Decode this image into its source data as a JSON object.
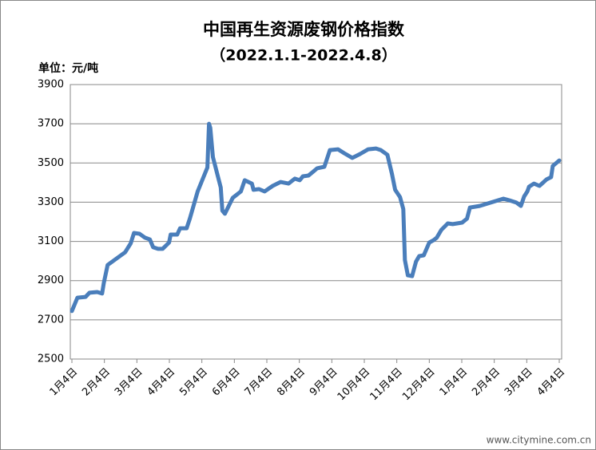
{
  "chart_data": {
    "type": "line",
    "title": "中国再生资源废钢价格指数",
    "subtitle": "（2022.1.1-2022.4.8）",
    "y_axis_label": "单位：元/吨",
    "watermark": "www.citymine.com.cn",
    "xlim": [
      0,
      15
    ],
    "xticks": [
      {
        "value": 0,
        "label": "1月4日"
      },
      {
        "value": 1,
        "label": "2月4日"
      },
      {
        "value": 2,
        "label": "3月4日"
      },
      {
        "value": 3,
        "label": "4月4日"
      },
      {
        "value": 4,
        "label": "5月4日"
      },
      {
        "value": 5,
        "label": "6月4日"
      },
      {
        "value": 6,
        "label": "7月4日"
      },
      {
        "value": 7,
        "label": "8月4日"
      },
      {
        "value": 8,
        "label": "9月4日"
      },
      {
        "value": 9,
        "label": "10月4日"
      },
      {
        "value": 10,
        "label": "11月4日"
      },
      {
        "value": 11,
        "label": "12月4日"
      },
      {
        "value": 12,
        "label": "1月4日"
      },
      {
        "value": 13,
        "label": "2月4日"
      },
      {
        "value": 14,
        "label": "3月4日"
      },
      {
        "value": 15,
        "label": "4月4日"
      }
    ],
    "ylim": [
      2500,
      3900
    ],
    "yticks": [
      2500,
      2700,
      2900,
      3100,
      3300,
      3500,
      3700,
      3900
    ],
    "grid": true,
    "series": [
      {
        "name": "废钢价格指数",
        "color": "#4a7ebb",
        "x": [
          0,
          0.17,
          0.42,
          0.54,
          0.78,
          0.93,
          0.98,
          1.1,
          1.64,
          1.81,
          1.91,
          2.08,
          2.25,
          2.4,
          2.5,
          2.65,
          2.79,
          2.99,
          3.04,
          3.24,
          3.33,
          3.53,
          3.63,
          3.87,
          4.17,
          4.22,
          4.26,
          4.34,
          4.58,
          4.63,
          4.71,
          4.95,
          5.2,
          5.32,
          5.54,
          5.59,
          5.76,
          5.93,
          6.18,
          6.42,
          6.67,
          6.86,
          7.01,
          7.11,
          7.28,
          7.4,
          7.55,
          7.77,
          7.94,
          8.19,
          8.38,
          8.63,
          8.87,
          9.12,
          9.36,
          9.51,
          9.71,
          9.85,
          9.95,
          10.1,
          10.2,
          10.25,
          10.34,
          10.47,
          10.59,
          10.69,
          10.83,
          11.0,
          11.13,
          11.23,
          11.37,
          11.47,
          11.57,
          11.72,
          12.01,
          12.16,
          12.25,
          12.55,
          13.28,
          13.46,
          13.68,
          13.82,
          13.92,
          14.02,
          14.07,
          14.22,
          14.39,
          14.61,
          14.75,
          14.8,
          15.0
        ],
        "values": [
          2745,
          2813,
          2817,
          2838,
          2842,
          2834,
          2887,
          2980,
          3045,
          3090,
          3143,
          3139,
          3119,
          3110,
          3070,
          3062,
          3062,
          3094,
          3135,
          3135,
          3167,
          3167,
          3216,
          3355,
          3477,
          3700,
          3680,
          3530,
          3375,
          3257,
          3241,
          3322,
          3355,
          3412,
          3395,
          3363,
          3367,
          3355,
          3383,
          3403,
          3395,
          3420,
          3412,
          3432,
          3436,
          3452,
          3473,
          3481,
          3566,
          3570,
          3550,
          3526,
          3546,
          3570,
          3574,
          3566,
          3542,
          3444,
          3363,
          3326,
          3265,
          3005,
          2927,
          2923,
          2997,
          3025,
          3029,
          3094,
          3106,
          3119,
          3159,
          3175,
          3192,
          3188,
          3196,
          3216,
          3273,
          3281,
          3318,
          3310,
          3298,
          3281,
          3330,
          3355,
          3379,
          3395,
          3383,
          3416,
          3428,
          3485,
          3513
        ]
      }
    ]
  }
}
